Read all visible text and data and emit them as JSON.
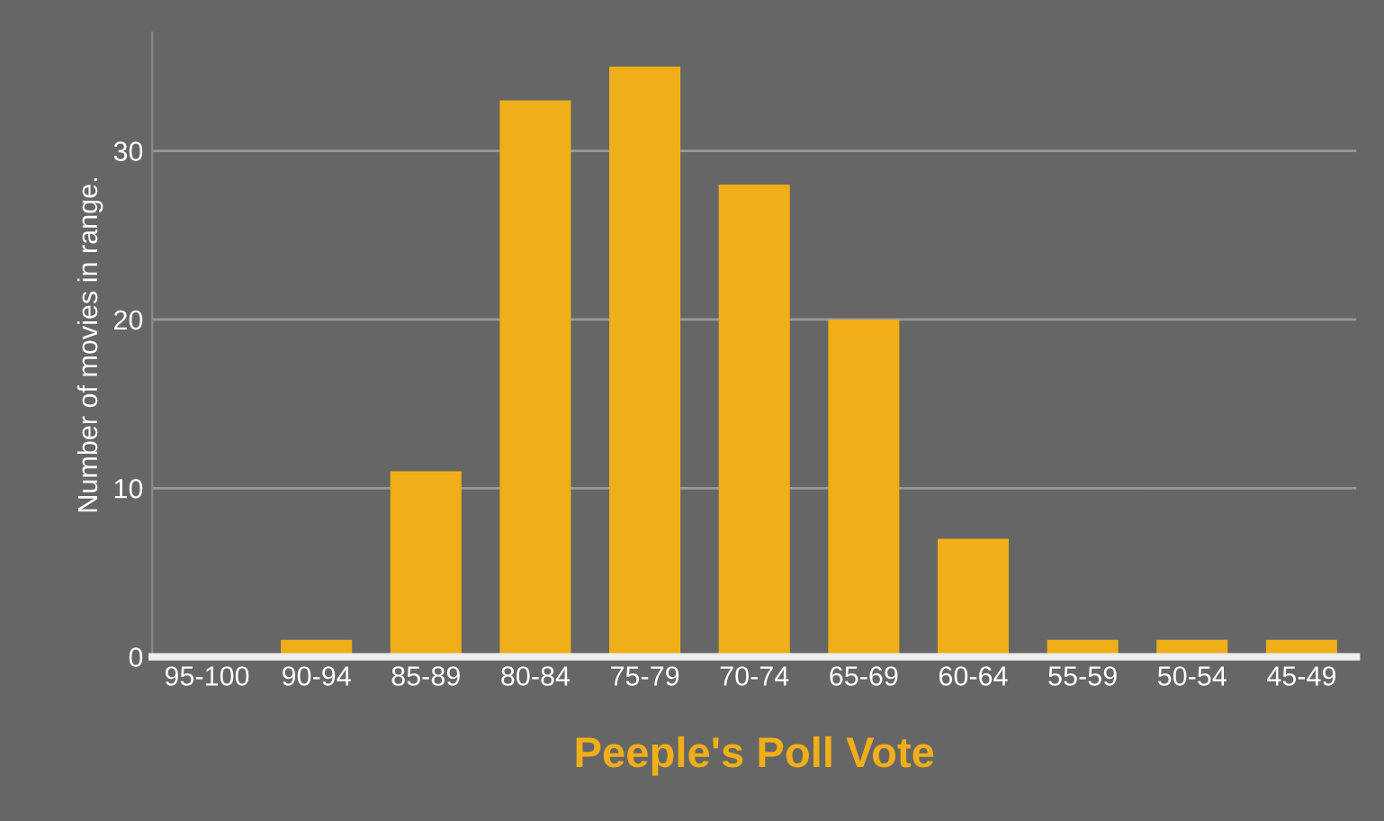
{
  "chart_data": {
    "type": "bar",
    "xlabel": "Peeple's Poll Vote",
    "ylabel": "Number of movies in range.",
    "categories": [
      "95-100",
      "90-94",
      "85-89",
      "80-84",
      "75-79",
      "70-74",
      "65-69",
      "60-64",
      "55-59",
      "50-54",
      "45-49"
    ],
    "values": [
      0,
      1,
      11,
      33,
      35,
      28,
      20,
      7,
      1,
      1,
      1
    ],
    "color": "#f0ae18",
    "ylim": [
      0,
      37
    ],
    "yticks": [
      0,
      10,
      20,
      30
    ],
    "grid": "y",
    "legend": false
  }
}
